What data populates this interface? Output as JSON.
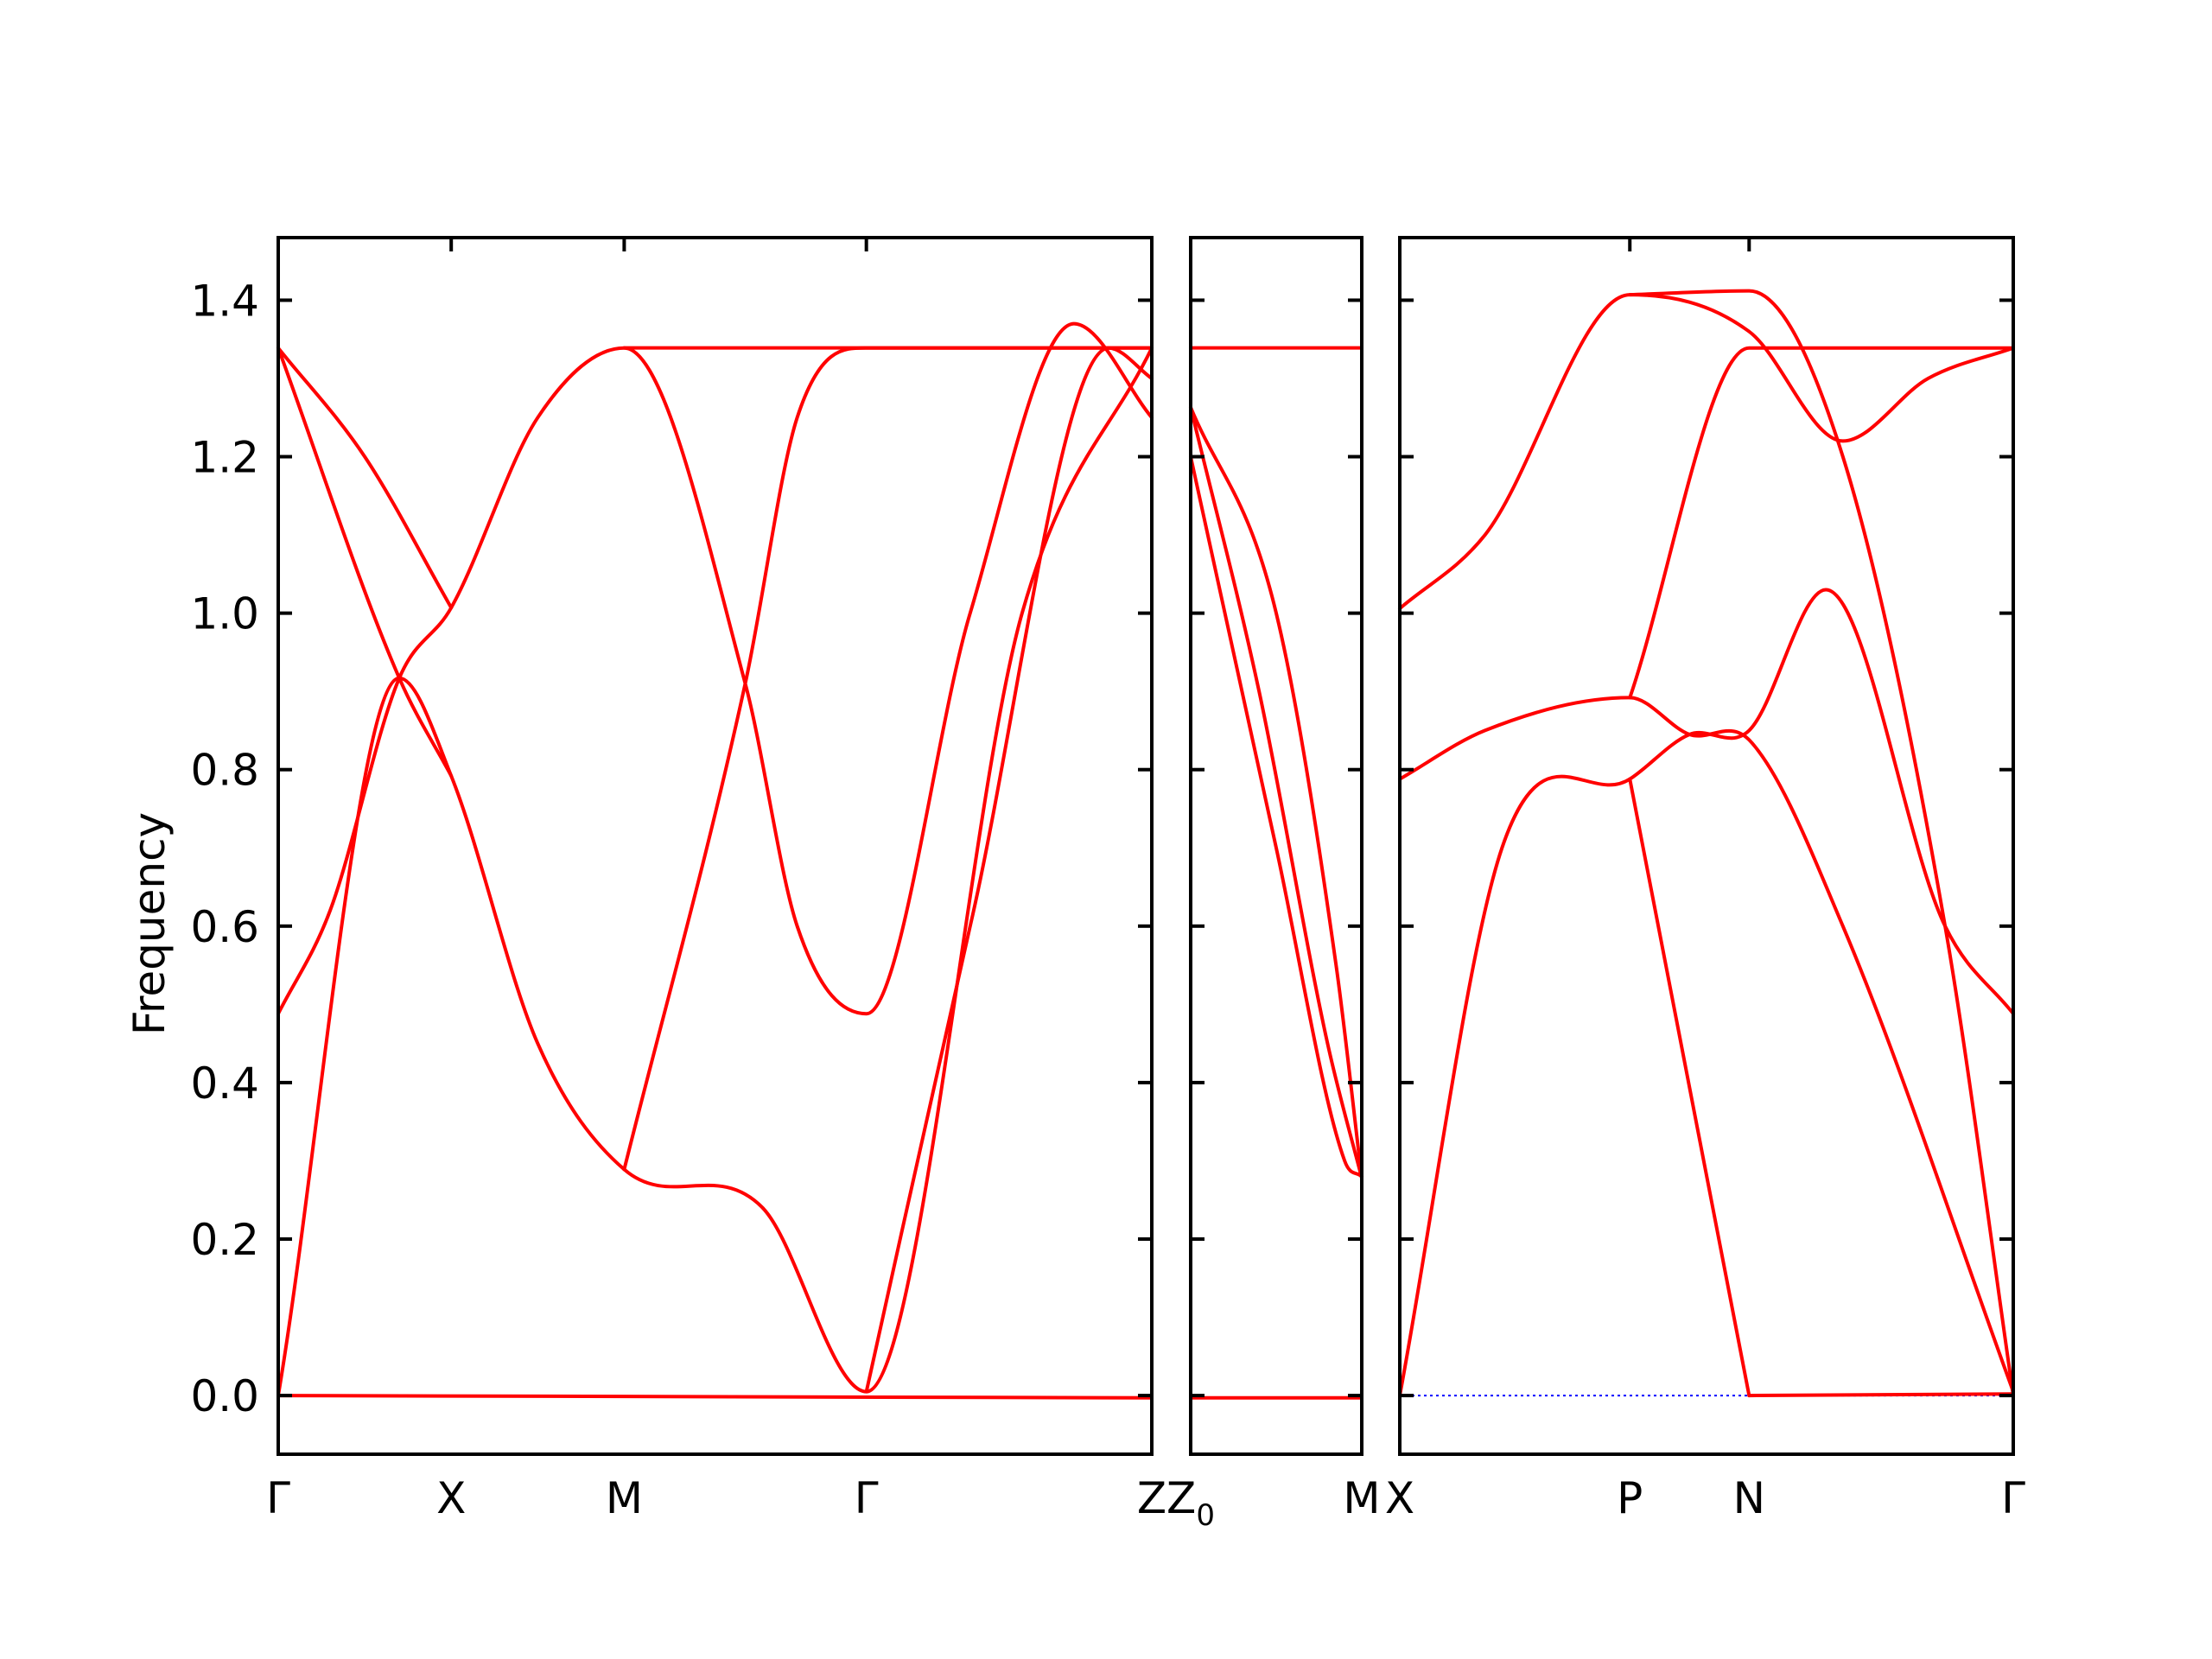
{
  "chart_data": {
    "type": "line",
    "title": "",
    "ylabel": "Frequency",
    "ylim": [
      -0.075,
      1.48
    ],
    "yticks": [
      "0.0",
      "0.2",
      "0.4",
      "0.6",
      "0.8",
      "1.0",
      "1.2",
      "1.4"
    ],
    "grid": false,
    "legend": "none",
    "band_color": "#ff0000",
    "zero_line_color": "#0000ff",
    "panels": [
      {
        "name": "Γ-X-M-Γ-Z",
        "x_range": [
          0,
          5.05
        ],
        "kpoints": [
          {
            "label": "Γ",
            "sub": "",
            "x": 0
          },
          {
            "label": "X",
            "sub": "",
            "x": 1
          },
          {
            "label": "M",
            "sub": "",
            "x": 2
          },
          {
            "label": "Γ",
            "sub": "",
            "x": 3.4
          },
          {
            "label": "Z",
            "sub": "",
            "x": 5.05
          }
        ],
        "bands": [
          [
            [
              0,
              0
            ],
            [
              0.7,
              0.917
            ],
            [
              1,
              0.792
            ],
            [
              1.5,
              0.45
            ],
            [
              2,
              0.289
            ],
            [
              2.8,
              0.24
            ],
            [
              3.4,
              0.005
            ],
            [
              4.3,
              1.0
            ],
            [
              5.05,
              1.339
            ]
          ],
          [
            [
              0,
              0.488
            ],
            [
              0.3,
              0.62
            ],
            [
              0.7,
              0.917
            ],
            [
              1,
              1.007
            ],
            [
              1.5,
              1.25
            ],
            [
              2,
              1.339
            ],
            [
              2.7,
              0.91
            ],
            [
              3.0,
              0.6
            ],
            [
              3.4,
              0.488
            ],
            [
              4.0,
              1.0
            ],
            [
              4.6,
              1.37
            ],
            [
              5.05,
              1.25
            ]
          ],
          [
            [
              0,
              1.339
            ],
            [
              0.7,
              0.917
            ],
            [
              1,
              0.792
            ]
          ],
          [
            [
              0,
              1.339
            ],
            [
              0.5,
              1.2
            ],
            [
              1,
              1.007
            ]
          ],
          [
            [
              2,
              0.289
            ],
            [
              2.7,
              0.91
            ],
            [
              3.0,
              1.25
            ],
            [
              3.4,
              1.339
            ],
            [
              5.05,
              1.339
            ]
          ],
          [
            [
              2,
              1.339
            ],
            [
              5.05,
              1.339
            ]
          ],
          [
            [
              3.4,
              0.005
            ],
            [
              4.0,
              0.6
            ],
            [
              4.8,
              1.339
            ],
            [
              5.05,
              1.3
            ]
          ],
          [
            [
              0,
              0
            ],
            [
              5.05,
              -0.003
            ]
          ]
        ]
      },
      {
        "name": "Z₀-M",
        "x_range": [
          0,
          1
        ],
        "kpoints": [
          {
            "label": "Z",
            "sub": "0",
            "x": 0
          },
          {
            "label": "M",
            "sub": "",
            "x": 1
          }
        ],
        "bands": [
          [
            [
              0,
              1.339
            ],
            [
              1,
              1.339
            ]
          ],
          [
            [
              0,
              1.263
            ],
            [
              0.4,
              0.9
            ],
            [
              0.8,
              0.45
            ],
            [
              1,
              0.278
            ]
          ],
          [
            [
              0,
              1.263
            ],
            [
              0.5,
              1.0
            ],
            [
              0.85,
              0.55
            ],
            [
              1,
              0.278
            ]
          ],
          [
            [
              0,
              1.2
            ],
            [
              0.5,
              0.7
            ],
            [
              0.9,
              0.3
            ],
            [
              1,
              0.28
            ]
          ],
          [
            [
              0,
              -0.003
            ],
            [
              1,
              -0.003
            ]
          ]
        ]
      },
      {
        "name": "X-P-N-Γ",
        "x_range": [
          0,
          3.6
        ],
        "kpoints": [
          {
            "label": "X",
            "sub": "",
            "x": 0
          },
          {
            "label": "P",
            "sub": "",
            "x": 1.35
          },
          {
            "label": "N",
            "sub": "",
            "x": 2.05
          },
          {
            "label": "Γ",
            "sub": "",
            "x": 3.6
          }
        ],
        "bands": [
          [
            [
              0,
              1.006
            ],
            [
              0.5,
              1.1
            ],
            [
              1.35,
              1.407
            ],
            [
              2.05,
              1.36
            ],
            [
              2.6,
              1.22
            ],
            [
              3.1,
              1.3
            ],
            [
              3.6,
              1.339
            ]
          ],
          [
            [
              0,
              0.788
            ],
            [
              0.5,
              0.85
            ],
            [
              1.35,
              0.892
            ],
            [
              1.7,
              0.845
            ],
            [
              2.05,
              0.838
            ],
            [
              2.6,
              0.6
            ],
            [
              3.6,
              0.005
            ]
          ],
          [
            [
              0,
              0
            ],
            [
              0.6,
              0.7
            ],
            [
              1.35,
              0.788
            ],
            [
              1.7,
              0.845
            ],
            [
              2.05,
              0.85
            ],
            [
              2.5,
              1.03
            ],
            [
              3.2,
              0.6
            ],
            [
              3.6,
              0.488
            ]
          ],
          [
            [
              1.35,
              0.788
            ],
            [
              2.05,
              0.0
            ]
          ],
          [
            [
              1.35,
              0.892
            ],
            [
              2.05,
              1.339
            ],
            [
              3.6,
              1.339
            ]
          ],
          [
            [
              1.35,
              1.407
            ],
            [
              2.05,
              1.412
            ],
            [
              2.6,
              1.2
            ],
            [
              3.2,
              0.6
            ],
            [
              3.6,
              0.0
            ]
          ],
          [
            [
              2.05,
              0
            ],
            [
              3.6,
              0.002
            ]
          ]
        ],
        "zero_line": true
      }
    ]
  }
}
